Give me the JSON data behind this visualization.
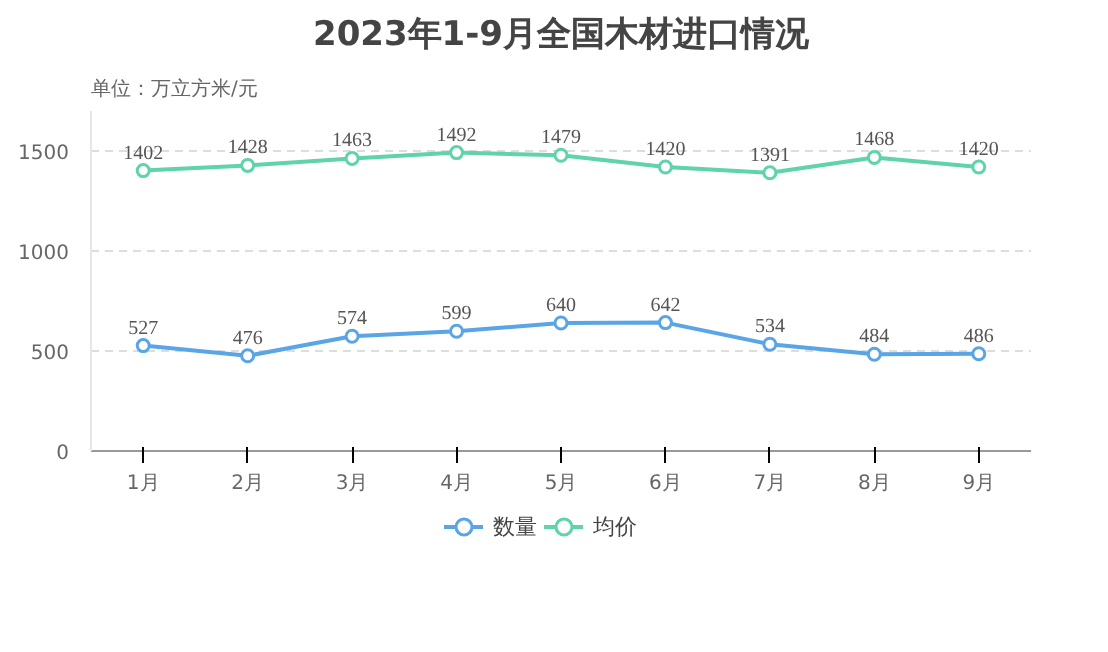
{
  "chart_data": {
    "type": "line",
    "title": "2023年1-9月全国木材进口情况",
    "ylabel": "单位：万立方米/元",
    "categories": [
      "1月",
      "2月",
      "3月",
      "4月",
      "5月",
      "6月",
      "7月",
      "8月",
      "9月"
    ],
    "series": [
      {
        "name": "数量",
        "color": "#5aa5e6",
        "values": [
          527,
          476,
          574,
          599,
          640,
          642,
          534,
          484,
          486
        ]
      },
      {
        "name": "均价",
        "color": "#5fd3a9",
        "values": [
          1402,
          1428,
          1463,
          1492,
          1479,
          1420,
          1391,
          1468,
          1420
        ]
      }
    ],
    "ylim": [
      0,
      1700
    ],
    "yticks": [
      0,
      500,
      1000,
      1500
    ],
    "grid": "y",
    "legend": "bottom",
    "marker": "circle",
    "line_style": "solid",
    "data_labels": true
  }
}
